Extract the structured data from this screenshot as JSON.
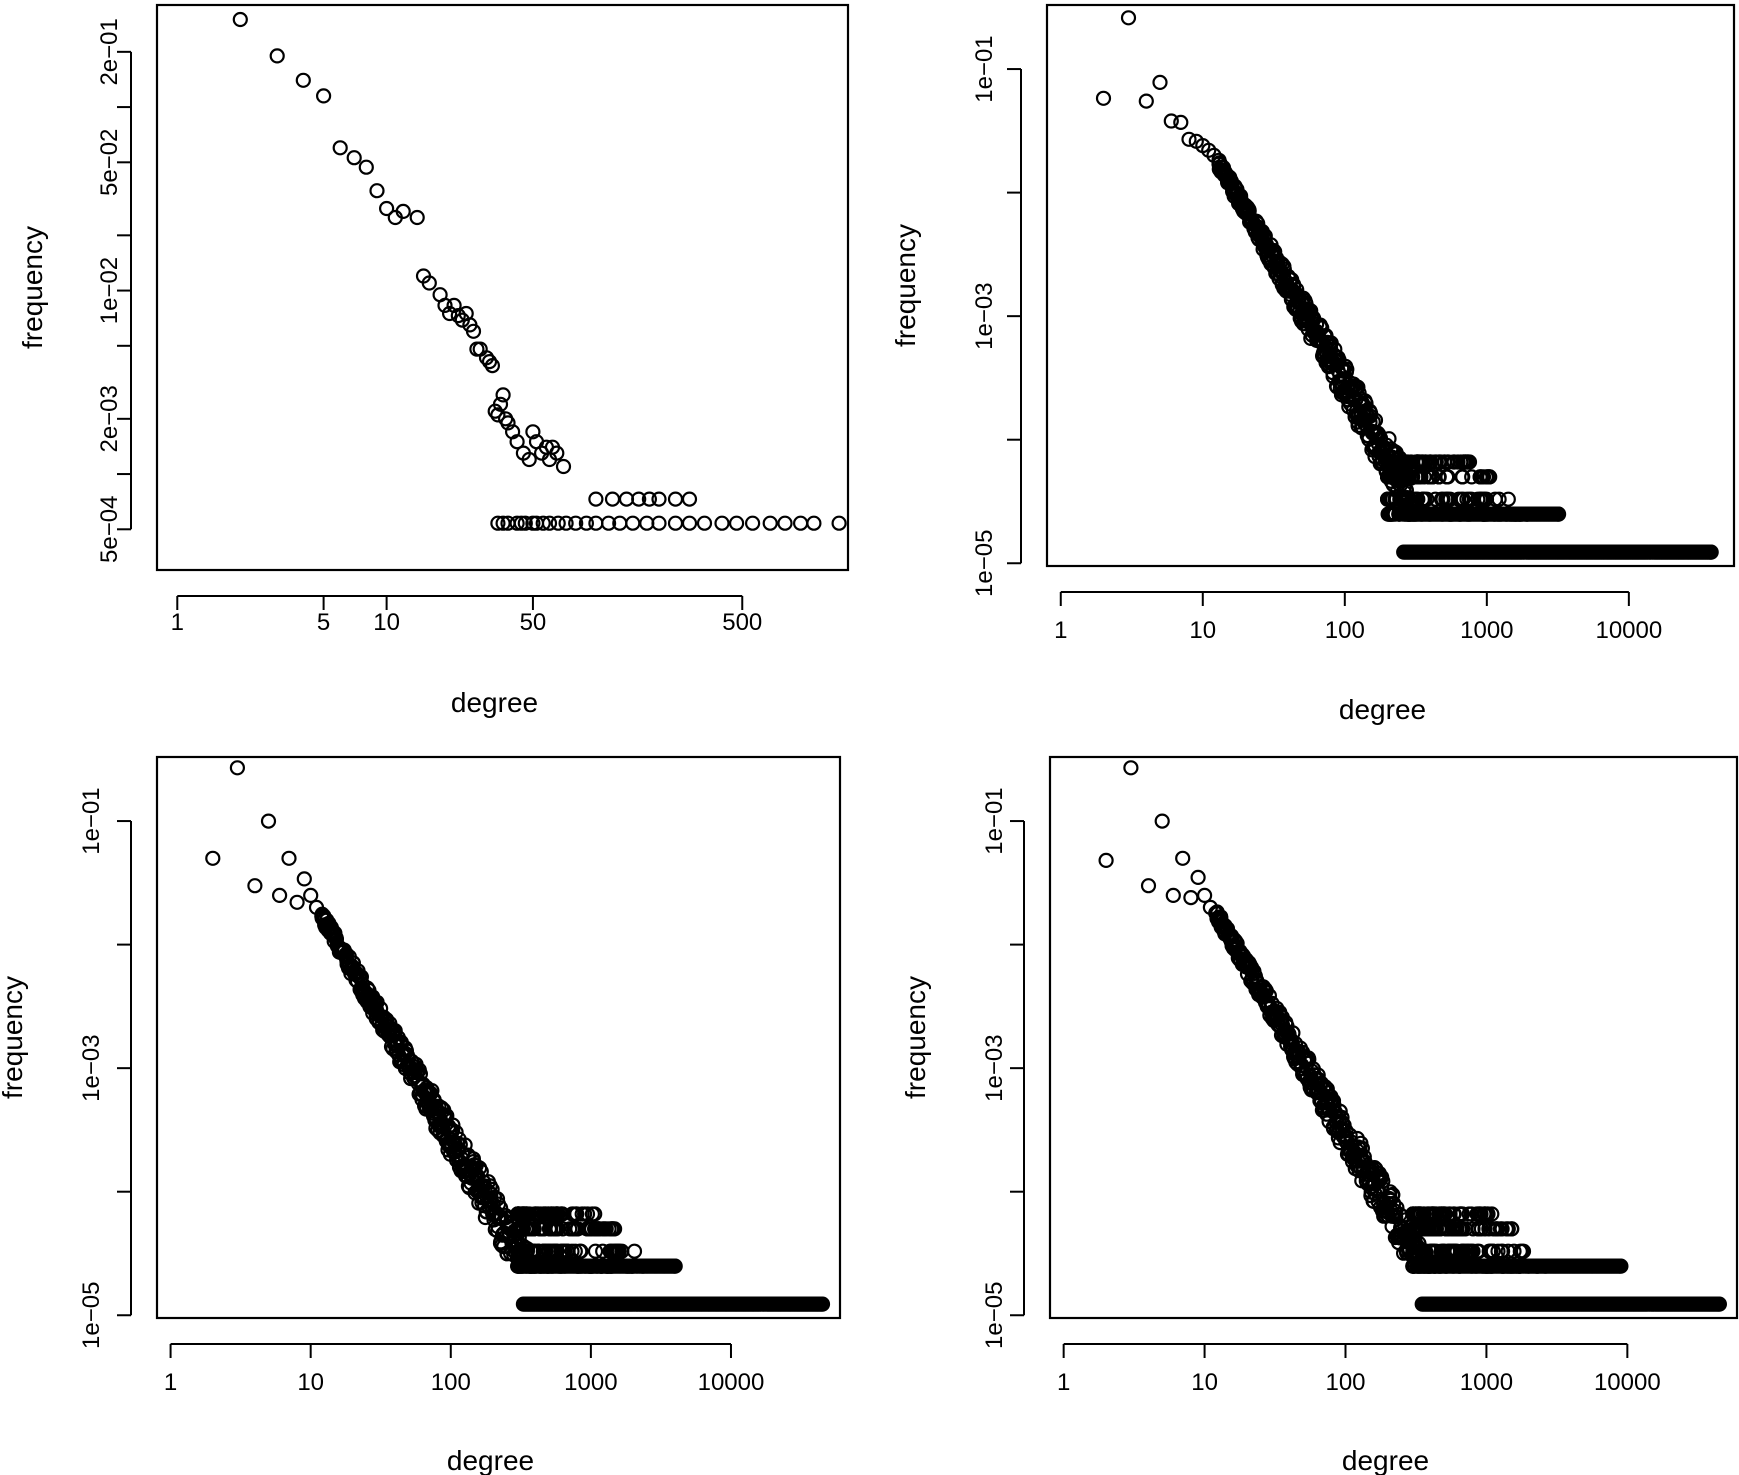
{
  "chart_data": [
    {
      "type": "scatter",
      "xlabel": "degree",
      "ylabel": "frequency",
      "xscale": "log",
      "yscale": "log",
      "xlim": [
        0.8,
        1600
      ],
      "ylim": [
        0.0003,
        0.36
      ],
      "x_ticks": [
        1,
        5,
        10,
        50,
        500
      ],
      "x_tick_labels": [
        "1",
        "5",
        "10",
        "50",
        "500"
      ],
      "y_ticks": [
        0.0005,
        0.002,
        0.01,
        0.05,
        0.2
      ],
      "y_tick_labels": [
        "5e−04",
        "2e−03",
        "1e−02",
        "5e−02",
        "2e−01"
      ],
      "extra_y_ticks": [
        0.001,
        0.005,
        0.02,
        0.1
      ],
      "points": [
        [
          2,
          0.3
        ],
        [
          3,
          0.19
        ],
        [
          4,
          0.14
        ],
        [
          5,
          0.115
        ],
        [
          6,
          0.06
        ],
        [
          7,
          0.053
        ],
        [
          8,
          0.047
        ],
        [
          9,
          0.035
        ],
        [
          10,
          0.028
        ],
        [
          11,
          0.025
        ],
        [
          12,
          0.027
        ],
        [
          14,
          0.025
        ],
        [
          15,
          0.012
        ],
        [
          16,
          0.011
        ],
        [
          18,
          0.0095
        ],
        [
          19,
          0.0083
        ],
        [
          20,
          0.0075
        ],
        [
          21,
          0.0083
        ],
        [
          22,
          0.0073
        ],
        [
          23,
          0.0069
        ],
        [
          24,
          0.0075
        ],
        [
          25,
          0.0065
        ],
        [
          26,
          0.006
        ],
        [
          27,
          0.0048
        ],
        [
          28,
          0.0048
        ],
        [
          30,
          0.0043
        ],
        [
          31,
          0.0041
        ],
        [
          32,
          0.0039
        ],
        [
          33,
          0.0022
        ],
        [
          34,
          0.0021
        ],
        [
          35,
          0.0024
        ],
        [
          36,
          0.0027
        ],
        [
          37,
          0.002
        ],
        [
          38,
          0.0019
        ],
        [
          40,
          0.0017
        ],
        [
          42,
          0.0015
        ],
        [
          45,
          0.0013
        ],
        [
          48,
          0.0012
        ],
        [
          50,
          0.0017
        ],
        [
          52,
          0.0015
        ],
        [
          55,
          0.0013
        ],
        [
          58,
          0.0014
        ],
        [
          60,
          0.0012
        ],
        [
          62,
          0.0014
        ],
        [
          65,
          0.0013
        ],
        [
          70,
          0.0011
        ],
        [
          34,
          0.00054
        ],
        [
          36,
          0.00054
        ],
        [
          38,
          0.00054
        ],
        [
          42,
          0.00054
        ],
        [
          44,
          0.00054
        ],
        [
          46,
          0.00054
        ],
        [
          50,
          0.00054
        ],
        [
          52,
          0.00054
        ],
        [
          56,
          0.00054
        ],
        [
          60,
          0.00054
        ],
        [
          66,
          0.00054
        ],
        [
          72,
          0.00054
        ],
        [
          80,
          0.00054
        ],
        [
          90,
          0.00054
        ],
        [
          100,
          0.00054
        ],
        [
          115,
          0.00054
        ],
        [
          130,
          0.00054
        ],
        [
          150,
          0.00054
        ],
        [
          175,
          0.00054
        ],
        [
          200,
          0.00054
        ],
        [
          240,
          0.00054
        ],
        [
          280,
          0.00054
        ],
        [
          330,
          0.00054
        ],
        [
          400,
          0.00054
        ],
        [
          470,
          0.00054
        ],
        [
          560,
          0.00054
        ],
        [
          680,
          0.00054
        ],
        [
          800,
          0.00054
        ],
        [
          950,
          0.00054
        ],
        [
          1100,
          0.00054
        ],
        [
          1450,
          0.00054
        ],
        [
          100,
          0.00073
        ],
        [
          120,
          0.00073
        ],
        [
          140,
          0.00073
        ],
        [
          160,
          0.00073
        ],
        [
          180,
          0.00073
        ],
        [
          200,
          0.00073
        ],
        [
          240,
          0.00073
        ],
        [
          280,
          0.00073
        ]
      ]
    },
    {
      "type": "scatter",
      "xlabel": "degree",
      "ylabel": "frequency",
      "xscale": "log",
      "yscale": "log",
      "xlim": [
        0.8,
        55000
      ],
      "ylim": [
        9.5e-06,
        0.33
      ],
      "x_ticks": [
        1,
        10,
        100,
        1000,
        10000
      ],
      "x_tick_labels": [
        "1",
        "10",
        "100",
        "1000",
        "10000"
      ],
      "y_ticks": [
        1e-05,
        0.001,
        0.1
      ],
      "y_tick_labels": [
        "1e−05",
        "1e−03",
        "1e−01"
      ],
      "extra_y_ticks": [
        0.0001,
        0.01
      ],
      "head_points": [
        [
          2,
          0.058
        ],
        [
          3,
          0.26
        ],
        [
          4,
          0.055
        ],
        [
          5,
          0.078
        ],
        [
          6,
          0.038
        ],
        [
          7,
          0.037
        ],
        [
          8,
          0.027
        ],
        [
          9,
          0.026
        ],
        [
          10,
          0.024
        ],
        [
          11,
          0.022
        ],
        [
          12,
          0.02
        ],
        [
          13,
          0.017
        ]
      ],
      "body": {
        "x_from": 13,
        "x_to": 300,
        "slope": -2.0,
        "y_at_x_from": 0.017,
        "scatter": 0.35
      },
      "mid_band": {
        "x_from": 200,
        "x_to": 2000,
        "levels": [
          2.5e-05,
          3.3e-05,
          5e-05,
          6.6e-05
        ]
      },
      "floor_levels": [
        {
          "y": 2.5e-05,
          "x_from": 280,
          "x_to": 3200
        },
        {
          "y": 1.23e-05,
          "x_from": 260,
          "x_to": 38000
        }
      ]
    },
    {
      "type": "scatter",
      "xlabel": "degree",
      "ylabel": "frequency",
      "xscale": "log",
      "yscale": "log",
      "xlim": [
        0.8,
        60000
      ],
      "ylim": [
        9.5e-06,
        0.33
      ],
      "x_ticks": [
        1,
        10,
        100,
        1000,
        10000
      ],
      "x_tick_labels": [
        "1",
        "10",
        "100",
        "1000",
        "10000"
      ],
      "y_ticks": [
        1e-05,
        0.001,
        0.1
      ],
      "y_tick_labels": [
        "1e−05",
        "1e−03",
        "1e−01"
      ],
      "extra_y_ticks": [
        0.0001,
        0.01
      ],
      "head_points": [
        [
          2,
          0.05
        ],
        [
          3,
          0.27
        ],
        [
          4,
          0.03
        ],
        [
          5,
          0.1
        ],
        [
          6,
          0.025
        ],
        [
          7,
          0.05
        ],
        [
          8,
          0.022
        ],
        [
          9,
          0.034
        ],
        [
          10,
          0.025
        ],
        [
          11,
          0.02
        ],
        [
          12,
          0.017
        ]
      ],
      "body": {
        "x_from": 12,
        "x_to": 400,
        "slope": -1.95,
        "y_at_x_from": 0.017,
        "scatter": 0.35
      },
      "mid_band": {
        "x_from": 300,
        "x_to": 2800,
        "levels": [
          2.5e-05,
          3.3e-05,
          5e-05,
          6.6e-05
        ]
      },
      "floor_levels": [
        {
          "y": 2.5e-05,
          "x_from": 330,
          "x_to": 4000
        },
        {
          "y": 1.23e-05,
          "x_from": 330,
          "x_to": 45000
        }
      ]
    },
    {
      "type": "scatter",
      "xlabel": "degree",
      "ylabel": "frequency",
      "xscale": "log",
      "yscale": "log",
      "xlim": [
        0.8,
        60000
      ],
      "ylim": [
        9.5e-06,
        0.33
      ],
      "x_ticks": [
        1,
        10,
        100,
        1000,
        10000
      ],
      "x_tick_labels": [
        "1",
        "10",
        "100",
        "1000",
        "10000"
      ],
      "y_ticks": [
        1e-05,
        0.001,
        0.1
      ],
      "y_tick_labels": [
        "1e−05",
        "1e−03",
        "1e−01"
      ],
      "extra_y_ticks": [
        0.0001,
        0.01
      ],
      "head_points": [
        [
          2,
          0.048
        ],
        [
          3,
          0.27
        ],
        [
          4,
          0.03
        ],
        [
          5,
          0.1
        ],
        [
          6,
          0.025
        ],
        [
          7,
          0.05
        ],
        [
          8,
          0.024
        ],
        [
          9,
          0.035
        ],
        [
          10,
          0.025
        ],
        [
          11,
          0.02
        ],
        [
          12,
          0.018
        ]
      ],
      "body": {
        "x_from": 12,
        "x_to": 400,
        "slope": -1.95,
        "y_at_x_from": 0.018,
        "scatter": 0.35
      },
      "mid_band": {
        "x_from": 300,
        "x_to": 2800,
        "levels": [
          2.5e-05,
          3.3e-05,
          5e-05,
          6.6e-05
        ]
      },
      "floor_levels": [
        {
          "y": 2.5e-05,
          "x_from": 330,
          "x_to": 9000
        },
        {
          "y": 1.23e-05,
          "x_from": 350,
          "x_to": 45000
        }
      ]
    }
  ]
}
